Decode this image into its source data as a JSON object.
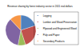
{
  "chart_data": {
    "type": "pie",
    "title": "Revenue sharing by forest industry sector in 2011 real dollars",
    "categories": [
      "Logging",
      "Lumber and Wood Preservation",
      "Plywood and Engineered Wood",
      "Pulp and Paper",
      "Secondary Products"
    ],
    "values": [
      20,
      25,
      8,
      35,
      12
    ],
    "colors": [
      "#4f81bd",
      "#c0504d",
      "#9bbb59",
      "#8064a2",
      "#f79646"
    ],
    "legend": "right",
    "data_labels": false
  }
}
